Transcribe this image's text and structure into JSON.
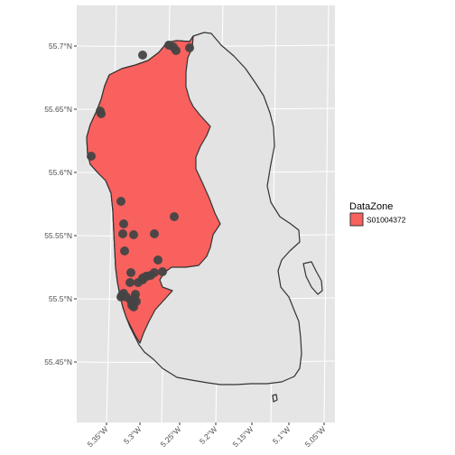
{
  "map": {
    "y_ticks": [
      "55.7°N",
      "55.65°N",
      "55.6°N",
      "55.55°N",
      "55.5°N",
      "55.45°N"
    ],
    "x_ticks": [
      "5.35°W",
      "5.3°W",
      "5.25°W",
      "5.2°W",
      "5.15°W",
      "5.1°W",
      "5.05°W"
    ],
    "legend": {
      "title": "DataZone",
      "items": [
        {
          "label": "S01004372",
          "color": "#F8615E"
        }
      ]
    },
    "colors": {
      "panel_background": "#E5E5E5",
      "grid_lines": "#FFFFFF",
      "island_fill": "#E3E3E3",
      "island_outline": "#333333",
      "zone_fill": "#F8615E",
      "point_color": "#444444",
      "tick_text": "#4D4D4D"
    },
    "point_count": 36
  }
}
